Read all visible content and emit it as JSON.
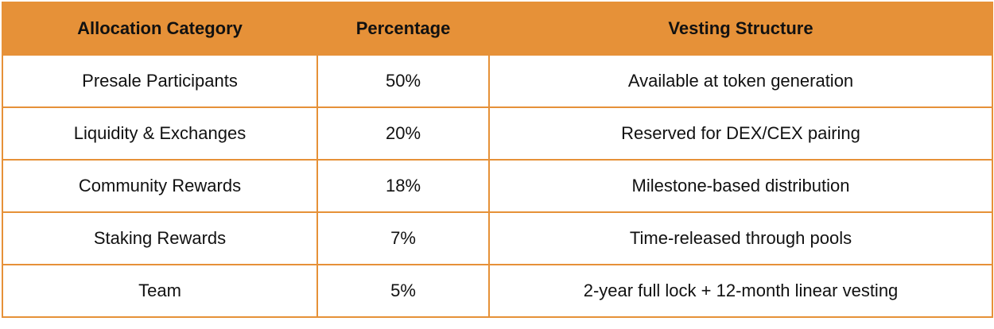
{
  "table": {
    "header": [
      "Allocation Category",
      "Percentage",
      "Vesting Structure"
    ],
    "rows": [
      [
        "Presale Participants",
        "50%",
        "Available at token generation"
      ],
      [
        "Liquidity & Exchanges",
        "20%",
        "Reserved for DEX/CEX pairing"
      ],
      [
        "Community Rewards",
        "18%",
        "Milestone-based distribution"
      ],
      [
        "Staking Rewards",
        "7%",
        "Time-released through pools"
      ],
      [
        "Team",
        "5%",
        "2-year full lock + 12-month linear vesting"
      ]
    ]
  }
}
